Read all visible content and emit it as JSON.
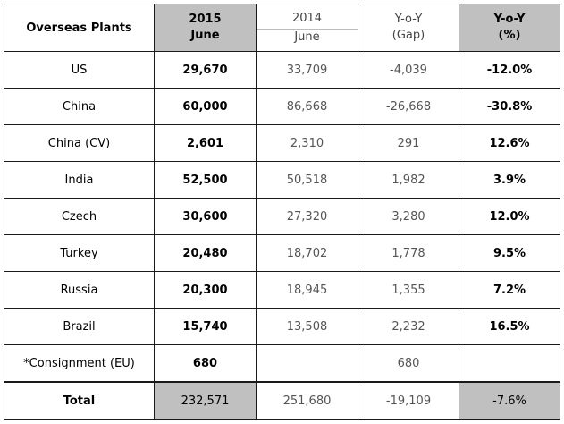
{
  "header": {
    "col0": "Overseas Plants",
    "col1_line1": "2015",
    "col1_line2": "June",
    "col2_line1": "2014",
    "col2_line2": "June",
    "col3_line1": "Y-o-Y",
    "col3_line2": "(Gap)",
    "col4_line1": "Y-o-Y",
    "col4_line2": "(%)"
  },
  "rows": [
    {
      "plant": "US",
      "y2015": "29,670",
      "y2014": "33,709",
      "gap": "-4,039",
      "pct": "-12.0%"
    },
    {
      "plant": "China",
      "y2015": "60,000",
      "y2014": "86,668",
      "gap": "-26,668",
      "pct": "-30.8%"
    },
    {
      "plant": "China (CV)",
      "y2015": "2,601",
      "y2014": "2,310",
      "gap": "291",
      "pct": "12.6%"
    },
    {
      "plant": "India",
      "y2015": "52,500",
      "y2014": "50,518",
      "gap": "1,982",
      "pct": "3.9%"
    },
    {
      "plant": "Czech",
      "y2015": "30,600",
      "y2014": "27,320",
      "gap": "3,280",
      "pct": "12.0%"
    },
    {
      "plant": "Turkey",
      "y2015": "20,480",
      "y2014": "18,702",
      "gap": "1,778",
      "pct": "9.5%"
    },
    {
      "plant": "Russia",
      "y2015": "20,300",
      "y2014": "18,945",
      "gap": "1,355",
      "pct": "7.2%"
    },
    {
      "plant": "Brazil",
      "y2015": "15,740",
      "y2014": "13,508",
      "gap": "2,232",
      "pct": "16.5%"
    },
    {
      "plant": "*Consignment (EU)",
      "y2015": "680",
      "y2014": "",
      "gap": "680",
      "pct": ""
    }
  ],
  "total": {
    "label": "Total",
    "y2015": "232,571",
    "y2014": "251,680",
    "gap": "-19,109",
    "pct": "-7.6%"
  }
}
